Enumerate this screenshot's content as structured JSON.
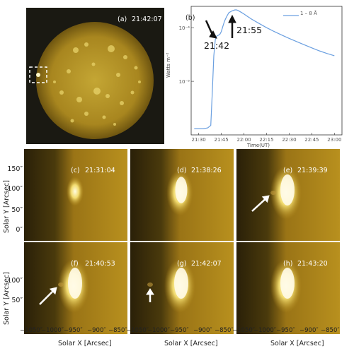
{
  "panel_a": {
    "label": "(a)",
    "time": "21:42:07"
  },
  "panel_b": {
    "label": "(b)",
    "legend": "1 – 8 Å",
    "annotation_1": "21:42",
    "annotation_2": "21:55"
  },
  "chart_data": {
    "type": "line",
    "title": "",
    "xlabel": "Time(UT)",
    "ylabel": "Watts m⁻²",
    "yscale": "log",
    "x_ticks": [
      "21:30",
      "21:45",
      "22:00",
      "22:15",
      "22:30",
      "22:45",
      "23:00"
    ],
    "y_ticks": [
      "10⁻⁴",
      "10⁻⁵"
    ],
    "ylim": [
      1e-06,
      0.00025
    ],
    "xlim": [
      "21:25",
      "23:05"
    ],
    "series": [
      {
        "name": "1 – 8 Å",
        "x": [
          "21:27",
          "21:30",
          "21:33",
          "21:36",
          "21:38",
          "21:39",
          "21:40",
          "21:41",
          "21:42",
          "21:43",
          "21:44",
          "21:45",
          "21:46",
          "21:47",
          "21:48",
          "21:49",
          "21:50",
          "21:52",
          "21:54",
          "21:55",
          "21:56",
          "21:58",
          "22:00",
          "22:02",
          "22:05",
          "22:10",
          "22:15",
          "22:20",
          "22:25",
          "22:30",
          "22:35",
          "22:40",
          "22:45",
          "22:50",
          "22:55",
          "23:00"
        ],
        "y": [
          1.3e-06,
          1.3e-06,
          1.3e-06,
          1.35e-06,
          1.5e-06,
          6e-06,
          3e-05,
          6e-05,
          7e-05,
          7.2e-05,
          7.5e-05,
          8.5e-05,
          0.000105,
          0.00013,
          0.00015,
          0.00017,
          0.00019,
          0.000205,
          0.000215,
          0.000215,
          0.00021,
          0.000195,
          0.00018,
          0.000165,
          0.000145,
          0.00012,
          0.0001,
          8.5e-05,
          7.3e-05,
          6.3e-05,
          5.5e-05,
          4.8e-05,
          4.2e-05,
          3.7e-05,
          3.3e-05,
          3e-05
        ]
      }
    ]
  },
  "grid": {
    "panels": [
      {
        "label": "(c)",
        "time": "21:31:04"
      },
      {
        "label": "(d)",
        "time": "21:38:26"
      },
      {
        "label": "(e)",
        "time": "21:39:39"
      },
      {
        "label": "(f)",
        "time": "21:40:53"
      },
      {
        "label": "(g)",
        "time": "21:42:07"
      },
      {
        "label": "(h)",
        "time": "21:43:20"
      }
    ],
    "y_ticks": [
      "150″",
      "100″",
      "50″",
      "0″"
    ],
    "x_ticks": [
      "−1050″",
      "−1000″",
      "−950″",
      "−900″",
      "−850″"
    ],
    "ylabel": "Solar Y [Arcsec]",
    "xlabel": "Solar X [Arcsec]"
  }
}
